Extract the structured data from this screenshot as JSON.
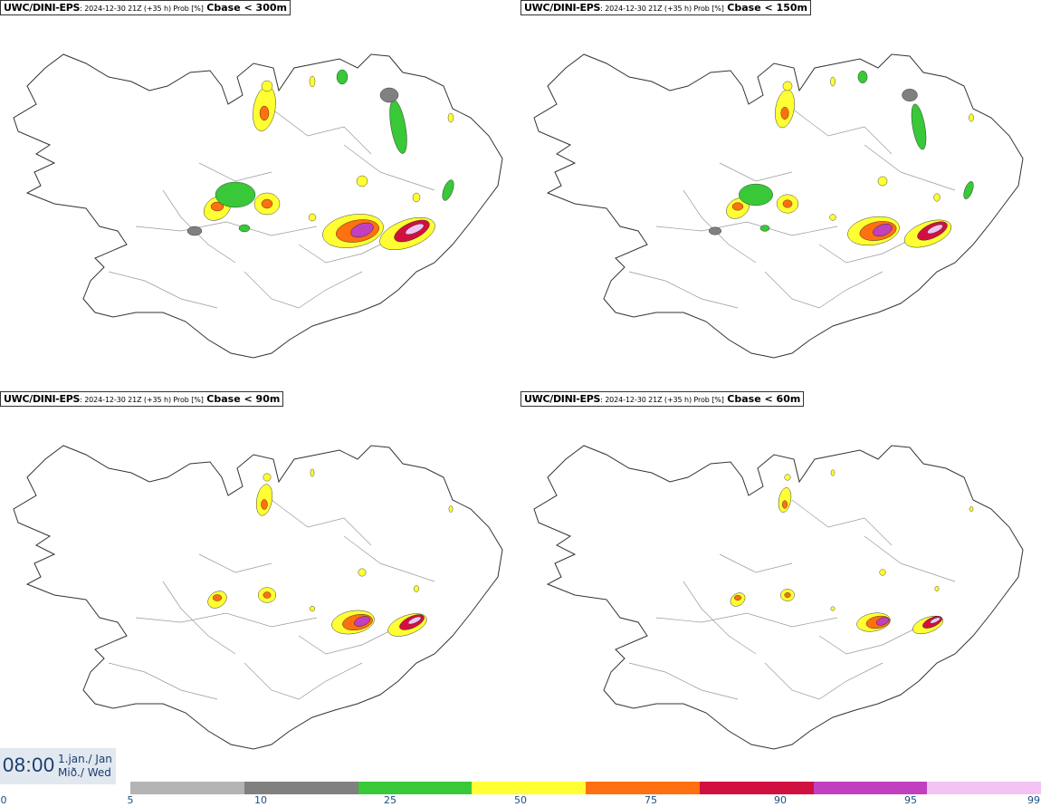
{
  "panels": [
    {
      "model": "UWC/DINI-EPS",
      "meta": ": 2024-12-30 21Z (+35 h) Prob [%]",
      "param": "Cbase < 300m",
      "level": 4
    },
    {
      "model": "UWC/DINI-EPS",
      "meta": ": 2024-12-30 21Z (+35 h) Prob [%]",
      "param": "Cbase < 150m",
      "level": 3
    },
    {
      "model": "UWC/DINI-EPS",
      "meta": ": 2024-12-30 21Z (+35 h) Prob [%]",
      "param": "Cbase < 90m",
      "level": 2
    },
    {
      "model": "UWC/DINI-EPS",
      "meta": ": 2024-12-30 21Z (+35 h) Prob [%]",
      "param": "Cbase < 60m",
      "level": 1
    }
  ],
  "time": {
    "clock": "08:00",
    "date_line1": "1.jan./ Jan",
    "date_line2": "Mið./ Wed"
  },
  "colorbar": {
    "colors": [
      "#b4b4b4",
      "#808080",
      "#38c838",
      "#ffff33",
      "#ff7010",
      "#d21040",
      "#c040c0",
      "#f3c3f3"
    ],
    "labels": [
      "0",
      "5",
      "10",
      "25",
      "50",
      "75",
      "90",
      "95",
      "99"
    ]
  }
}
